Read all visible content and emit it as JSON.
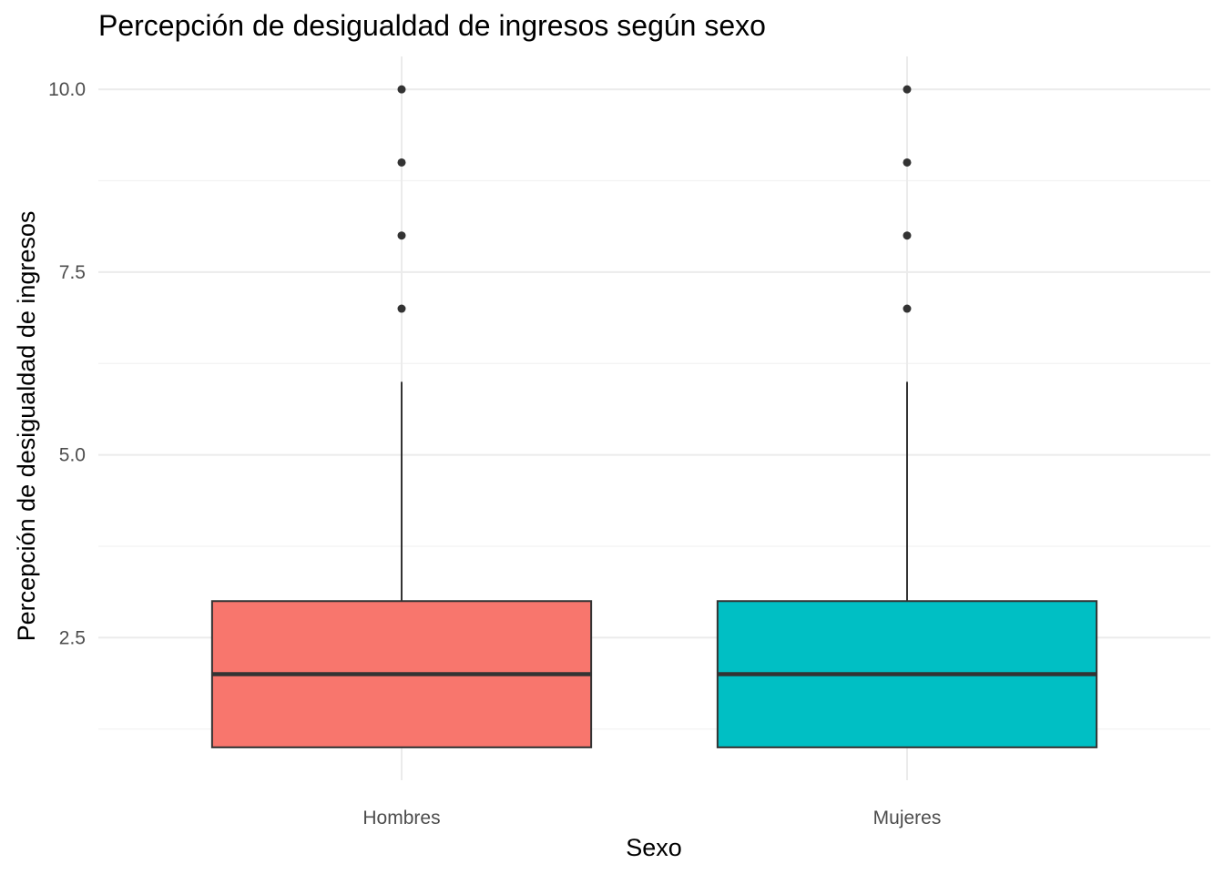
{
  "title": "Percepción de desigualdad de ingresos según sexo",
  "chart_data": {
    "type": "boxplot",
    "title": "Percepción de desigualdad de ingresos según sexo",
    "xlabel": "Sexo",
    "ylabel": "Percepción de desigualdad de ingresos",
    "categories": [
      "Hombres",
      "Mujeres"
    ],
    "ylim": [
      0.55,
      10.45
    ],
    "yticks": [
      2.5,
      5.0,
      7.5,
      10.0
    ],
    "ytick_labels": [
      "2.5",
      "5.0",
      "7.5",
      "10.0"
    ],
    "minor_yticks": [
      1.25,
      3.75,
      6.25,
      8.75
    ],
    "grid": true,
    "legend": "none",
    "boxes": [
      {
        "name": "Hombres",
        "color": "#F8766D",
        "min": 1,
        "q1": 1,
        "median": 2,
        "q3": 3,
        "whisker_high": 6,
        "outliers": [
          7,
          8,
          9,
          10
        ]
      },
      {
        "name": "Mujeres",
        "color": "#00BFC4",
        "min": 1,
        "q1": 1,
        "median": 2,
        "q3": 3,
        "whisker_high": 6,
        "outliers": [
          7,
          8,
          9,
          10
        ]
      }
    ]
  }
}
